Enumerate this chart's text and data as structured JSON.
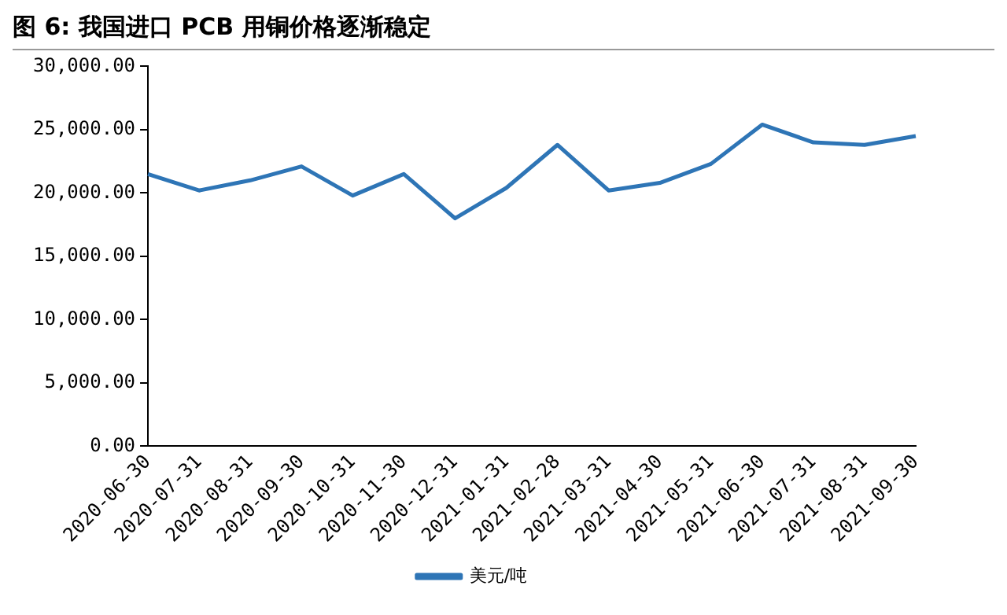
{
  "chart_data": {
    "type": "line",
    "title": "图 6: 我国进口 PCB 用铜价格逐渐稳定",
    "categories": [
      "2020-06-30",
      "2020-07-31",
      "2020-08-31",
      "2020-09-30",
      "2020-10-31",
      "2020-11-30",
      "2020-12-31",
      "2021-01-31",
      "2021-02-28",
      "2021-03-31",
      "2021-04-30",
      "2021-05-31",
      "2021-06-30",
      "2021-07-31",
      "2021-08-31",
      "2021-09-30"
    ],
    "series": [
      {
        "name": "美元/吨",
        "color": "#2e75b6",
        "values": [
          21500,
          20200,
          21000,
          22100,
          19800,
          21500,
          18000,
          20400,
          23800,
          20200,
          20800,
          22300,
          25400,
          24000,
          23800,
          24500
        ]
      }
    ],
    "ylim": [
      0,
      30000
    ],
    "yticks": [
      {
        "value": 0,
        "label": "0.00"
      },
      {
        "value": 5000,
        "label": "5,000.00"
      },
      {
        "value": 10000,
        "label": "10,000.00"
      },
      {
        "value": 15000,
        "label": "15,000.00"
      },
      {
        "value": 20000,
        "label": "20,000.00"
      },
      {
        "value": 25000,
        "label": "25,000.00"
      },
      {
        "value": 30000,
        "label": "30,000.00"
      }
    ],
    "grid": false,
    "legend": "bottom",
    "marker": "none",
    "line_style": "solid"
  }
}
